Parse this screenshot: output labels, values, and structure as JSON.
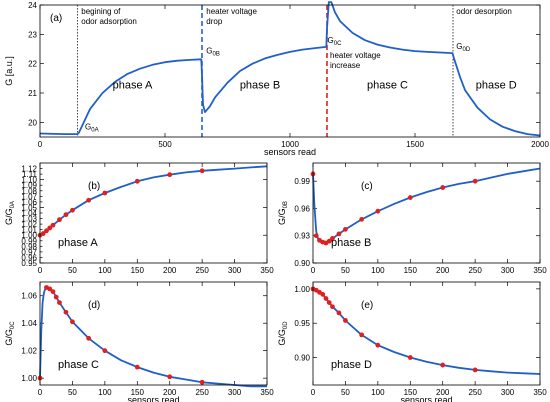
{
  "chart_data": [
    {
      "id": "a",
      "type": "line",
      "panel_label": "(a)",
      "xlabel": "sensors read",
      "ylabel": "G [a.u.]",
      "xlim": [
        0,
        2000
      ],
      "ylim": [
        19.5,
        24
      ],
      "xticks": [
        0,
        500,
        1000,
        1500,
        2000
      ],
      "yticks": [
        20,
        21,
        22,
        23,
        24
      ],
      "series": [
        {
          "x": [
            0,
            100,
            150,
            155,
            200,
            250,
            300,
            350,
            400,
            450,
            500,
            550,
            600,
            645,
            648,
            652,
            660,
            680,
            700,
            750,
            800,
            850,
            900,
            950,
            1000,
            1050,
            1100,
            1145,
            1148,
            1155,
            1165,
            1180,
            1200,
            1250,
            1300,
            1350,
            1400,
            1450,
            1500,
            1550,
            1600,
            1650,
            1655,
            1680,
            1700,
            1750,
            1800,
            1850,
            1900,
            1950,
            2000
          ],
          "y": [
            19.62,
            19.6,
            19.6,
            19.64,
            20.45,
            21.0,
            21.38,
            21.65,
            21.83,
            21.96,
            22.05,
            22.1,
            22.13,
            22.15,
            21.6,
            20.6,
            20.35,
            20.55,
            20.85,
            21.35,
            21.75,
            22.0,
            22.18,
            22.3,
            22.4,
            22.48,
            22.53,
            22.57,
            23.2,
            24.1,
            24.1,
            23.75,
            23.45,
            23.05,
            22.8,
            22.65,
            22.55,
            22.48,
            22.43,
            22.4,
            22.38,
            22.36,
            22.2,
            21.55,
            21.1,
            20.5,
            20.1,
            19.85,
            19.7,
            19.6,
            19.55
          ]
        }
      ],
      "vlines": [
        {
          "x": 150,
          "color": "#444444",
          "style": "dotted"
        },
        {
          "x": 648,
          "color": "#2060d0",
          "style": "dashed"
        },
        {
          "x": 1148,
          "color": "#e02020",
          "style": "dashed"
        },
        {
          "x": 1652,
          "color": "#444444",
          "style": "dotted"
        }
      ],
      "annotations": [
        {
          "text": [
            "begining of",
            "odor adsorption"
          ],
          "x": 165,
          "y": 23.7
        },
        {
          "text": [
            "heater voltage",
            "drop"
          ],
          "x": 665,
          "y": 23.7
        },
        {
          "text": [
            "heater voltage",
            "increase"
          ],
          "x": 1160,
          "y": 22.2
        },
        {
          "text": [
            "odor desorption"
          ],
          "x": 1665,
          "y": 23.7
        }
      ],
      "phase_labels": [
        {
          "text": "phase A",
          "x": 370,
          "y": 21.15
        },
        {
          "text": "phase B",
          "x": 880,
          "y": 21.15
        },
        {
          "text": "phase C",
          "x": 1390,
          "y": 21.15
        },
        {
          "text": "phase D",
          "x": 1825,
          "y": 21.15
        }
      ],
      "point_labels": [
        {
          "main": "G",
          "sub": "0A",
          "x": 180,
          "y": 19.75
        },
        {
          "main": "G",
          "sub": "0B",
          "x": 665,
          "y": 22.35
        },
        {
          "main": "G",
          "sub": "0C",
          "x": 1150,
          "y": 22.7
        },
        {
          "main": "G",
          "sub": "0D",
          "x": 1665,
          "y": 22.5
        }
      ]
    },
    {
      "id": "b",
      "type": "line",
      "panel_label": "(b)",
      "xlabel": "",
      "ylabel_main": "G/G",
      "ylabel_sub": "0A",
      "phase_label": "phase A",
      "xlim": [
        0,
        350
      ],
      "ylim": [
        0.95,
        1.13
      ],
      "xticks": [
        0,
        50,
        100,
        150,
        200,
        250,
        300,
        350
      ],
      "yticks": [
        0.95,
        1.0,
        1.05,
        1.1
      ],
      "ytick_labels": [
        "0.95",
        "1.00",
        "1.05",
        "1.10"
      ],
      "yticks_minor": [
        0.96,
        0.97,
        0.98,
        0.99,
        1.01,
        1.02,
        1.03,
        1.04,
        1.06,
        1.07,
        1.08,
        1.09,
        1.11,
        1.12
      ],
      "ytick_minor_labels": [
        "0.96",
        "0.97",
        "0.98",
        "0.99",
        "1.01",
        "1.02",
        "1.03",
        "1.04",
        "1.06",
        "1.07",
        "1.08",
        "1.09",
        "1.11",
        "1.12"
      ],
      "points_x": [
        0,
        5,
        10,
        15,
        20,
        30,
        40,
        50,
        75,
        100,
        150,
        200,
        250
      ],
      "points_y": [
        1.0,
        1.003,
        1.008,
        1.013,
        1.018,
        1.028,
        1.037,
        1.045,
        1.063,
        1.076,
        1.097,
        1.109,
        1.116
      ],
      "curve_x": [
        0,
        10,
        20,
        30,
        40,
        50,
        75,
        100,
        125,
        150,
        175,
        200,
        225,
        250,
        275,
        300,
        325,
        350
      ],
      "curve_y": [
        1.0,
        1.008,
        1.018,
        1.028,
        1.037,
        1.045,
        1.063,
        1.076,
        1.087,
        1.097,
        1.104,
        1.109,
        1.113,
        1.116,
        1.118,
        1.12,
        1.122,
        1.124
      ]
    },
    {
      "id": "c",
      "type": "line",
      "panel_label": "(c)",
      "xlabel": "",
      "ylabel_main": "G/G",
      "ylabel_sub": "0B",
      "phase_label": "phase B",
      "xlim": [
        0,
        350
      ],
      "ylim": [
        0.9,
        1.01
      ],
      "xticks": [
        0,
        50,
        100,
        150,
        200,
        250,
        300,
        350
      ],
      "yticks": [
        0.9,
        0.93,
        0.96,
        0.99
      ],
      "ytick_labels": [
        "0.90",
        "0.93",
        "0.96",
        "0.99"
      ],
      "points_x": [
        0,
        5,
        10,
        15,
        20,
        25,
        30,
        40,
        50,
        75,
        100,
        150,
        200,
        250
      ],
      "points_y": [
        0.998,
        0.93,
        0.925,
        0.923,
        0.922,
        0.924,
        0.927,
        0.932,
        0.937,
        0.948,
        0.957,
        0.972,
        0.983,
        0.99
      ],
      "curve_x": [
        0,
        2,
        5,
        8,
        12,
        16,
        20,
        25,
        30,
        40,
        50,
        75,
        100,
        125,
        150,
        175,
        200,
        225,
        250,
        275,
        300,
        325,
        350
      ],
      "curve_y": [
        0.998,
        0.965,
        0.935,
        0.926,
        0.923,
        0.922,
        0.922,
        0.924,
        0.927,
        0.932,
        0.937,
        0.948,
        0.957,
        0.965,
        0.972,
        0.978,
        0.983,
        0.987,
        0.99,
        0.994,
        0.998,
        1.001,
        1.004
      ]
    },
    {
      "id": "d",
      "type": "line",
      "panel_label": "(d)",
      "xlabel": "sensors read",
      "ylabel_main": "G/G",
      "ylabel_sub": "0C",
      "phase_label": "phase C",
      "xlim": [
        0,
        350
      ],
      "ylim": [
        0.995,
        1.07
      ],
      "xticks": [
        0,
        50,
        100,
        150,
        200,
        250,
        300,
        350
      ],
      "yticks": [
        1.0,
        1.02,
        1.04,
        1.06
      ],
      "ytick_labels": [
        "1.00",
        "1.02",
        "1.04",
        "1.06"
      ],
      "points_x": [
        0,
        10,
        15,
        20,
        25,
        30,
        40,
        50,
        75,
        100,
        150,
        200,
        250
      ],
      "points_y": [
        1.0,
        1.066,
        1.065,
        1.063,
        1.059,
        1.055,
        1.048,
        1.041,
        1.029,
        1.02,
        1.008,
        1.001,
        0.997
      ],
      "curve_x": [
        0,
        2,
        4,
        6,
        8,
        10,
        15,
        20,
        30,
        40,
        50,
        75,
        100,
        125,
        150,
        175,
        200,
        225,
        250,
        275,
        300,
        325,
        350
      ],
      "curve_y": [
        1.0,
        1.035,
        1.055,
        1.062,
        1.065,
        1.066,
        1.065,
        1.063,
        1.055,
        1.048,
        1.041,
        1.029,
        1.02,
        1.013,
        1.008,
        1.004,
        1.001,
        0.999,
        0.997,
        0.996,
        0.995,
        0.994,
        0.994
      ]
    },
    {
      "id": "e",
      "type": "line",
      "panel_label": "(e)",
      "xlabel": "sensors read",
      "ylabel_main": "G/G",
      "ylabel_sub": "0D",
      "phase_label": "phase D",
      "xlim": [
        0,
        350
      ],
      "ylim": [
        0.86,
        1.01
      ],
      "xticks": [
        0,
        50,
        100,
        150,
        200,
        250,
        300,
        350
      ],
      "yticks": [
        0.9,
        0.95,
        1.0
      ],
      "ytick_labels": [
        "0.90",
        "0.95",
        "1.00"
      ],
      "points_x": [
        0,
        5,
        10,
        15,
        20,
        25,
        30,
        40,
        50,
        75,
        100,
        150,
        200,
        250
      ],
      "points_y": [
        1.0,
        0.998,
        0.995,
        0.992,
        0.986,
        0.98,
        0.974,
        0.965,
        0.954,
        0.933,
        0.918,
        0.9,
        0.889,
        0.882
      ],
      "curve_x": [
        0,
        5,
        10,
        15,
        20,
        30,
        40,
        50,
        75,
        100,
        125,
        150,
        175,
        200,
        225,
        250,
        275,
        300,
        325,
        350
      ],
      "curve_y": [
        1.0,
        0.998,
        0.995,
        0.992,
        0.986,
        0.974,
        0.965,
        0.954,
        0.933,
        0.918,
        0.908,
        0.9,
        0.894,
        0.889,
        0.885,
        0.882,
        0.88,
        0.878,
        0.877,
        0.876
      ]
    }
  ]
}
